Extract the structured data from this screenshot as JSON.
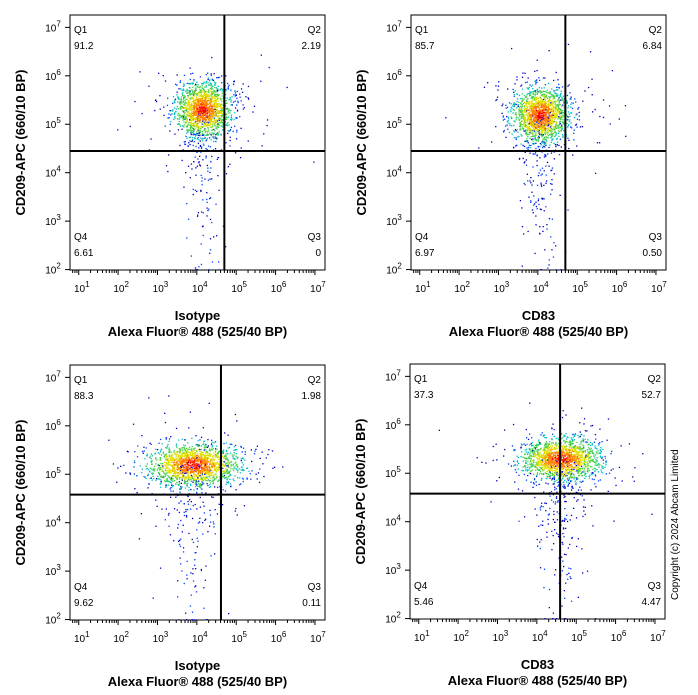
{
  "copyright": "Copyright (c) 2024 Abcam Limited",
  "chart_data": [
    {
      "type": "scatter",
      "subtype": "flow-cytometry-density-dot-plot",
      "xlabel_line1": "Isotype",
      "xlabel_line2": "Alexa Fluor® 488  (525/40 BP)",
      "ylabel": "CD209-APC (660/10 BP)",
      "x_scale": "log",
      "y_scale": "log",
      "xlim": [
        6,
        18000000
      ],
      "ylim": [
        98,
        18000000
      ],
      "x_ticks": [
        "10^1",
        "10^2",
        "10^3",
        "10^4",
        "10^5",
        "10^6",
        "10^7"
      ],
      "y_ticks": [
        "10^2",
        "10^3",
        "10^4",
        "10^5",
        "10^6",
        "10^7"
      ],
      "gate_x": 50000,
      "gate_y": 28000,
      "quadrants": [
        {
          "name": "Q1",
          "percent": "91.2"
        },
        {
          "name": "Q2",
          "percent": "2.19"
        },
        {
          "name": "Q3",
          "percent": "0"
        },
        {
          "name": "Q4",
          "percent": "6.61"
        }
      ]
    },
    {
      "type": "scatter",
      "subtype": "flow-cytometry-density-dot-plot",
      "xlabel_line1": "CD83",
      "xlabel_line2": "Alexa Fluor® 488  (525/40 BP)",
      "ylabel": "CD209-APC (660/10 BP)",
      "x_scale": "log",
      "y_scale": "log",
      "xlim": [
        6,
        18000000
      ],
      "ylim": [
        98,
        18000000
      ],
      "x_ticks": [
        "10^1",
        "10^2",
        "10^3",
        "10^4",
        "10^5",
        "10^6",
        "10^7"
      ],
      "y_ticks": [
        "10^2",
        "10^3",
        "10^4",
        "10^5",
        "10^6",
        "10^7"
      ],
      "gate_x": 50000,
      "gate_y": 28000,
      "quadrants": [
        {
          "name": "Q1",
          "percent": "85.7"
        },
        {
          "name": "Q2",
          "percent": "6.84"
        },
        {
          "name": "Q3",
          "percent": "0.50"
        },
        {
          "name": "Q4",
          "percent": "6.97"
        }
      ]
    },
    {
      "type": "scatter",
      "subtype": "flow-cytometry-density-dot-plot",
      "xlabel_line1": "Isotype",
      "xlabel_line2": "Alexa Fluor® 488  (525/40 BP)",
      "ylabel": "CD209-APC (660/10 BP)",
      "x_scale": "log",
      "y_scale": "log",
      "xlim": [
        6,
        18000000
      ],
      "ylim": [
        98,
        18000000
      ],
      "x_ticks": [
        "10^1",
        "10^2",
        "10^3",
        "10^4",
        "10^5",
        "10^6",
        "10^7"
      ],
      "y_ticks": [
        "10^2",
        "10^3",
        "10^4",
        "10^5",
        "10^6",
        "10^7"
      ],
      "gate_x": 41000,
      "gate_y": 38000,
      "quadrants": [
        {
          "name": "Q1",
          "percent": "88.3"
        },
        {
          "name": "Q2",
          "percent": "1.98"
        },
        {
          "name": "Q3",
          "percent": "0.11"
        },
        {
          "name": "Q4",
          "percent": "9.62"
        }
      ]
    },
    {
      "type": "scatter",
      "subtype": "flow-cytometry-density-dot-plot",
      "xlabel_line1": "CD83",
      "xlabel_line2": "Alexa Fluor® 488  (525/40 BP)",
      "ylabel": "CD209-APC  (660/10 BP)",
      "x_scale": "log",
      "y_scale": "log",
      "xlim": [
        6,
        18000000
      ],
      "ylim": [
        98,
        18000000
      ],
      "x_ticks": [
        "10^1",
        "10^2",
        "10^3",
        "10^4",
        "10^5",
        "10^6",
        "10^7"
      ],
      "y_ticks": [
        "10^2",
        "10^3",
        "10^4",
        "10^5",
        "10^6",
        "10^7"
      ],
      "gate_x": 39000,
      "gate_y": 38000,
      "quadrants": [
        {
          "name": "Q1",
          "percent": "37.3"
        },
        {
          "name": "Q2",
          "percent": "52.7"
        },
        {
          "name": "Q3",
          "percent": "4.47"
        },
        {
          "name": "Q4",
          "percent": "5.46"
        }
      ]
    }
  ]
}
